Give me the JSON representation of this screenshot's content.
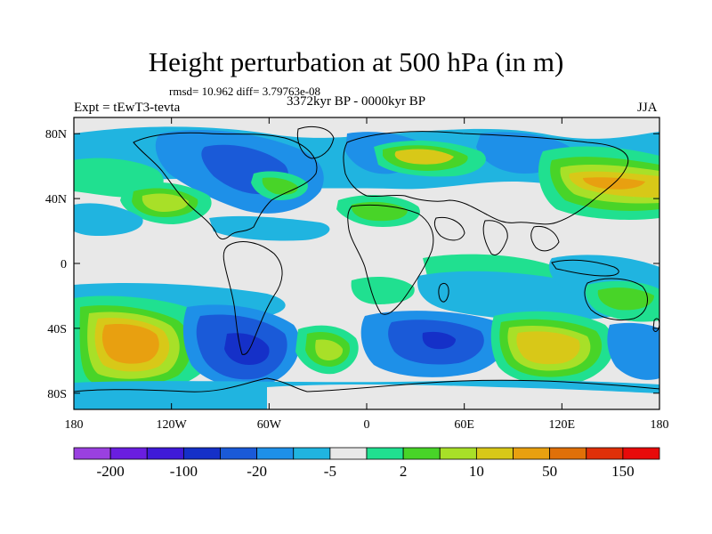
{
  "title": "Height perturbation at 500 hPa (in m)",
  "stats": "rmsd= 10.962 diff= 3.79763e-08",
  "experiment": "Expt = tEwT3-tevta",
  "period": "3372kyr BP - 0000kyr BP",
  "season": "JJA",
  "map": {
    "lon_range": [
      -180,
      180
    ],
    "lat_range": [
      -90,
      90
    ],
    "x_ticks": [
      {
        "lon": -180,
        "label": "180"
      },
      {
        "lon": -120,
        "label": "120W"
      },
      {
        "lon": -60,
        "label": "60W"
      },
      {
        "lon": 0,
        "label": "0"
      },
      {
        "lon": 60,
        "label": "60E"
      },
      {
        "lon": 120,
        "label": "120E"
      },
      {
        "lon": 180,
        "label": "180"
      }
    ],
    "y_ticks": [
      {
        "lat": 80,
        "label": "80N"
      },
      {
        "lat": 40,
        "label": "40N"
      },
      {
        "lat": 0,
        "label": "0"
      },
      {
        "lat": -40,
        "label": "40S"
      },
      {
        "lat": -80,
        "label": "80S"
      }
    ]
  },
  "colorbar": {
    "colors": [
      "#9a40e0",
      "#6a1ee0",
      "#3f1ad8",
      "#1530c8",
      "#1a5ad8",
      "#1e90e8",
      "#20b4e0",
      "#e8e8e8",
      "#20e090",
      "#48d428",
      "#a8e028",
      "#d8c818",
      "#e8a010",
      "#e07008",
      "#e03008",
      "#e80a0a"
    ],
    "labels": [
      {
        "index": 1,
        "text": "-200"
      },
      {
        "index": 3,
        "text": "-100"
      },
      {
        "index": 5,
        "text": "-20"
      },
      {
        "index": 7,
        "text": "-5"
      },
      {
        "index": 9,
        "text": "2"
      },
      {
        "index": 11,
        "text": "10"
      },
      {
        "index": 13,
        "text": "50"
      },
      {
        "index": 15,
        "text": "150"
      }
    ]
  },
  "fields": {
    "colors": {
      "gray": "#e8e8e8",
      "lightblue": "#20b4e0",
      "blue": "#1e90e8",
      "deepblue": "#1a5ad8",
      "navy": "#1530c8",
      "green": "#20e090",
      "lime": "#48d428",
      "yellowgreen": "#a8e028",
      "gold": "#d8c818",
      "orange": "#e8a010"
    }
  }
}
